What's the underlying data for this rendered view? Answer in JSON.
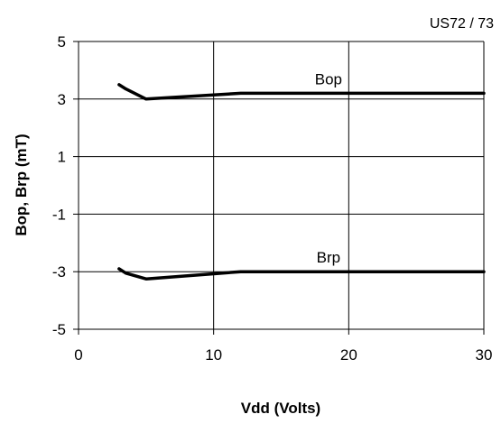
{
  "corner_label": "US72 / 73",
  "chart_data": {
    "type": "line",
    "title": "",
    "xlabel": "Vdd  (Volts)",
    "ylabel": "Bop, Brp (mT)",
    "xlim": [
      0,
      30
    ],
    "ylim": [
      -5,
      5
    ],
    "xticks": [
      0,
      10,
      20,
      30
    ],
    "yticks": [
      -5,
      -3,
      -1,
      1,
      3,
      5
    ],
    "grid": true,
    "legend": "none",
    "series": [
      {
        "name": "Bop",
        "color": "#000000",
        "x": [
          3.0,
          3.5,
          5.0,
          12.0,
          20.0,
          30.0
        ],
        "y": [
          3.5,
          3.35,
          3.0,
          3.2,
          3.2,
          3.2
        ]
      },
      {
        "name": "Brp",
        "color": "#000000",
        "x": [
          3.0,
          3.5,
          5.0,
          12.0,
          20.0,
          30.0
        ],
        "y": [
          -2.9,
          -3.05,
          -3.25,
          -3.0,
          -3.0,
          -3.0
        ]
      }
    ]
  }
}
